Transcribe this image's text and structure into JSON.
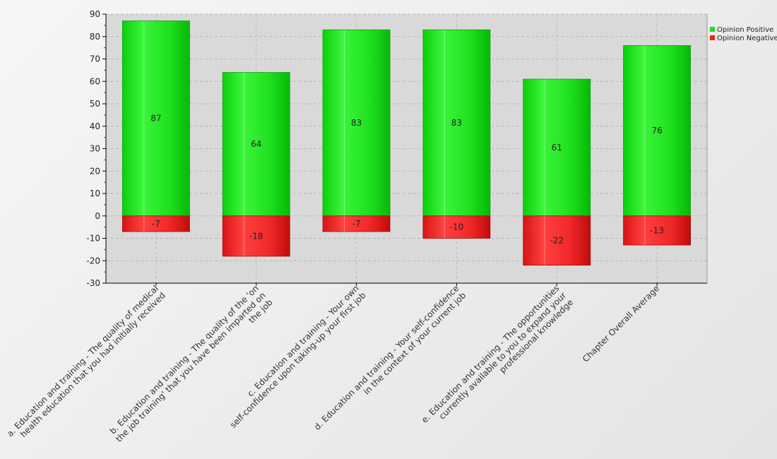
{
  "chart_data": {
    "type": "bar",
    "stacked": true,
    "categories": [
      [
        "a. Education and training - The quality of medical",
        "health education that you had initially received"
      ],
      [
        "b. Education and training - The quality of the 'on",
        "the job training' that you have been imparted on",
        "the job"
      ],
      [
        "c. Education and training - Your own",
        "self-confidence upon taking-up your first job"
      ],
      [
        "d. Education and training - Your self-confidence",
        "in the context of your current job"
      ],
      [
        "e. Education and training - The opportunities",
        "currently available to you to expand your",
        "professional knowledge"
      ],
      [
        "Chapter Overall Average"
      ]
    ],
    "series": [
      {
        "name": "Opinion Positive",
        "color": "#22dd22",
        "values": [
          87,
          64,
          83,
          83,
          61,
          76
        ]
      },
      {
        "name": "Opinion Negative",
        "color": "#ee2222",
        "values": [
          -7,
          -18,
          -7,
          -10,
          -22,
          -13
        ]
      }
    ],
    "ylim": [
      -30,
      90
    ],
    "yticks": [
      -30,
      -20,
      -10,
      0,
      10,
      20,
      30,
      40,
      50,
      60,
      70,
      80,
      90
    ],
    "grid": true,
    "legend": "top-right"
  }
}
